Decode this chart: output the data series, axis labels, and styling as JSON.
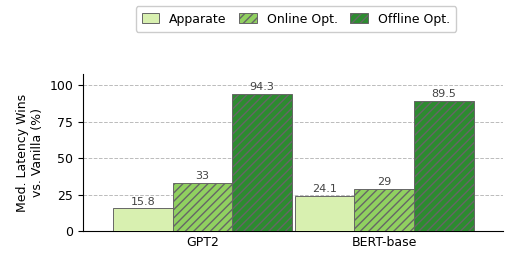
{
  "categories": [
    "GPT2",
    "BERT-base"
  ],
  "series": {
    "Apparate": [
      15.8,
      24.1
    ],
    "Online Opt.": [
      33,
      29
    ],
    "Offline Opt.": [
      94.3,
      89.5
    ]
  },
  "colors": {
    "Apparate": "#d8f0b0",
    "Online Opt.": "#90d060",
    "Offline Opt.": "#2d8b30"
  },
  "hatch": {
    "Apparate": "",
    "Online Opt.": "////",
    "Offline Opt.": "////"
  },
  "ylabel": "Med. Latency Wins\nvs. Vanilla (%)",
  "ylim": [
    0,
    108
  ],
  "yticks": [
    0,
    25,
    50,
    75,
    100
  ],
  "bar_width": 0.23,
  "group_centers": [
    0.35,
    1.05
  ],
  "legend_labels": [
    "Apparate",
    "Online Opt.",
    "Offline Opt."
  ],
  "label_fontsize": 9,
  "tick_fontsize": 9,
  "legend_fontsize": 9,
  "annot_fontsize": 8
}
